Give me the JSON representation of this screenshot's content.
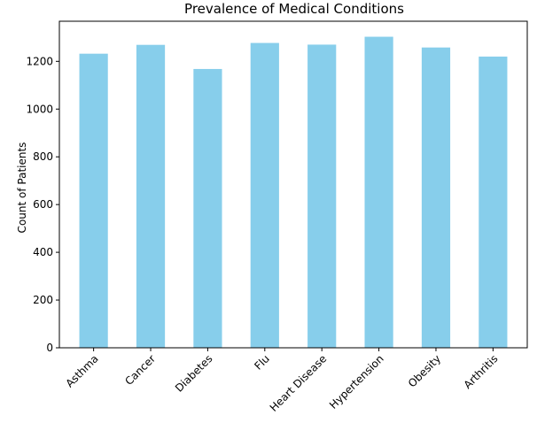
{
  "chart_data": {
    "type": "bar",
    "title": "Prevalence of Medical Conditions",
    "xlabel": "",
    "ylabel": "Count of Patients",
    "categories": [
      "Asthma",
      "Cancer",
      "Diabetes",
      "Flu",
      "Heart Disease",
      "Hypertension",
      "Obesity",
      "Arthritis"
    ],
    "values": [
      1232,
      1269,
      1168,
      1277,
      1270,
      1303,
      1258,
      1220
    ],
    "ylim": [
      0,
      1368
    ],
    "yticks": [
      "0",
      "200",
      "400",
      "600",
      "800",
      "1000",
      "1200"
    ],
    "bar_color": "#87CEEB",
    "grid": false,
    "legend": "none"
  }
}
